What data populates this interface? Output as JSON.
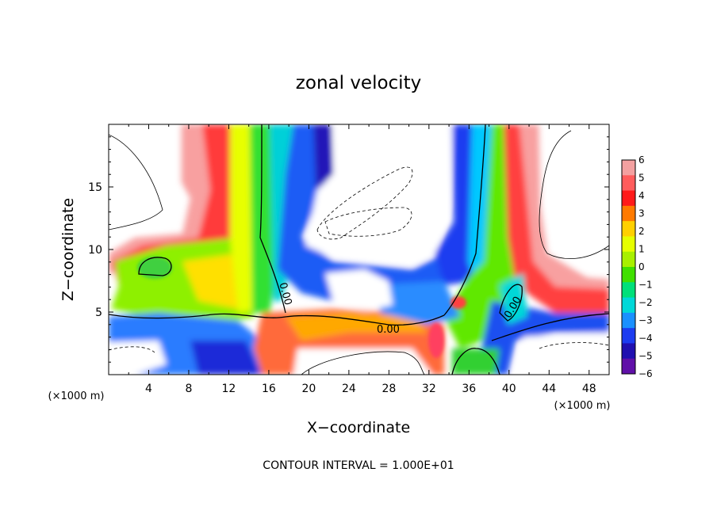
{
  "chart_data": {
    "type": "heatmap",
    "title": "zonal velocity",
    "xlabel": "X−coordinate",
    "ylabel": "Z−coordinate",
    "x_unit_left": "(×1000 m)",
    "x_unit_right": "(×1000 m)",
    "footer": "CONTOUR INTERVAL = 1.000E+01",
    "xlim": [
      0,
      50
    ],
    "ylim": [
      0,
      20
    ],
    "xticks": [
      4,
      8,
      12,
      16,
      20,
      24,
      28,
      32,
      36,
      40,
      44,
      48
    ],
    "yticks": [
      5,
      10,
      15
    ],
    "grid": false,
    "legend_position": "right",
    "colorbar": {
      "levels": [
        6,
        5,
        4,
        3,
        2,
        1,
        0,
        -1,
        -2,
        -3,
        -4,
        -5,
        -6
      ],
      "colors": [
        "#f3a0a0",
        "#ff5c5c",
        "#ff1a1a",
        "#ff7a00",
        "#ffd000",
        "#e6ff00",
        "#a8f000",
        "#40e000",
        "#00e07a",
        "#00d8d8",
        "#1a90ff",
        "#1c3cf0",
        "#2010b0",
        "#6010a8"
      ]
    },
    "contour_labels": [
      {
        "text": "0.00",
        "x": 27.5,
        "z": 3.6
      },
      {
        "text": "0.00",
        "x": 17.3,
        "z": 6.5
      },
      {
        "text": "0.00",
        "x": 40.0,
        "z": 5.4
      }
    ]
  }
}
